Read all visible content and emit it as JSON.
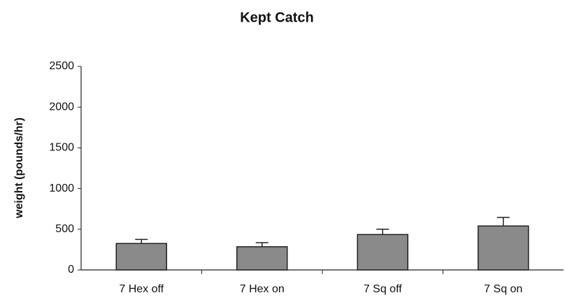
{
  "chart_data": {
    "type": "bar",
    "title": "Kept Catch",
    "y_label": "weight (pounds/hr)",
    "categories": [
      "7 Hex off",
      "7 Hex on",
      "7 Sq off",
      "7 Sq on"
    ],
    "values": [
      325,
      285,
      435,
      540
    ],
    "errors": [
      50,
      50,
      65,
      105
    ],
    "color": "#8a8a8a",
    "ylim": [
      0,
      2500
    ],
    "yticks": [
      0,
      500,
      1000,
      1500,
      2000,
      2500
    ],
    "grid": false
  }
}
